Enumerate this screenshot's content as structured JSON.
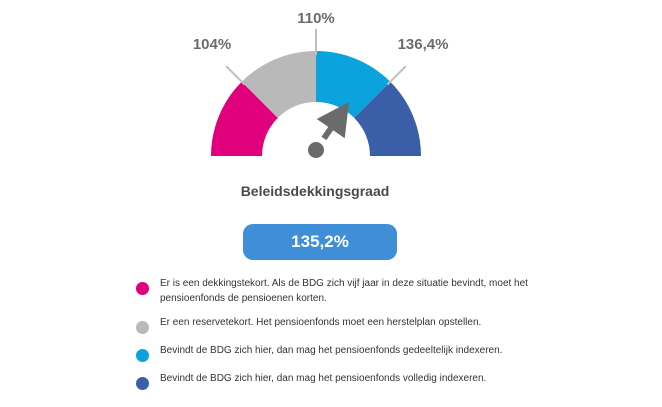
{
  "gauge": {
    "labels": {
      "low": "104%",
      "mid": "110%",
      "high": "136,4%"
    },
    "needle_value": 135.2,
    "colors": {
      "deficit": "#e0007b",
      "reserve_deficit": "#b9b9b9",
      "partial": "#0aa3de",
      "full": "#3a5ea8",
      "ticks": "#bfbfbf",
      "needle": "#6b6b6b"
    }
  },
  "title": "Beleidsdekkingsgraad",
  "value": {
    "text": "135,2%",
    "color": "#3e8fd7"
  },
  "legend": [
    {
      "color": "#e0007b",
      "text": "Er is een dekkingstekort. Als de BDG zich vijf jaar in deze situatie bevindt, moet het pensioenfonds de pensioenen korten."
    },
    {
      "color": "#b9b9b9",
      "text": "Er een reservetekort. Het pensioenfonds moet een herstelplan opstellen."
    },
    {
      "color": "#0aa3de",
      "text": "Bevindt de BDG zich hier, dan mag het pensioenfonds gedeeltelijk indexeren."
    },
    {
      "color": "#3a5ea8",
      "text": "Bevindt de BDG zich hier, dan mag het pensioenfonds volledig indexeren."
    }
  ]
}
